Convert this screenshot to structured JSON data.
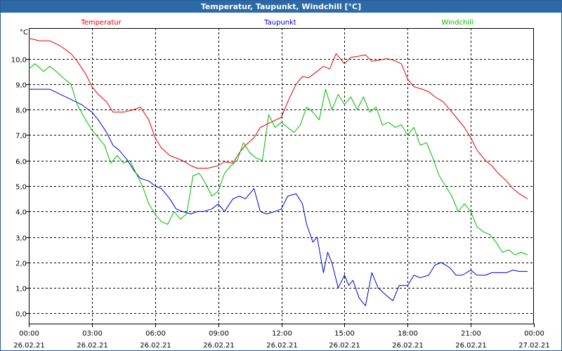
{
  "window": {
    "title": "Temperatur, Taupunkt, Windchill [°C]"
  },
  "chart_data": {
    "type": "line",
    "title": "Temperatur, Taupunkt, Windchill [°C]",
    "ylabel": "°C",
    "ylim": [
      -0.4,
      11.2
    ],
    "y_ticks": [
      0.0,
      1.0,
      2.0,
      3.0,
      4.0,
      5.0,
      6.0,
      7.0,
      8.0,
      9.0,
      10.0
    ],
    "y_tick_labels": [
      "0,0",
      "1,0",
      "2,0",
      "3,0",
      "4,0",
      "5,0",
      "6,0",
      "7,0",
      "8,0",
      "9,0",
      "10,0"
    ],
    "xlim": [
      0,
      24
    ],
    "x_ticks": [
      0,
      3,
      6,
      9,
      12,
      15,
      18,
      21,
      24
    ],
    "x_tick_labels": [
      {
        "time": "00:00",
        "date": "26.02.21"
      },
      {
        "time": "03:00",
        "date": "26.02.21"
      },
      {
        "time": "06:00",
        "date": "26.02.21"
      },
      {
        "time": "09:00",
        "date": "26.02.21"
      },
      {
        "time": "12:00",
        "date": "26.02.21"
      },
      {
        "time": "15:00",
        "date": "26.02.21"
      },
      {
        "time": "18:00",
        "date": "26.02.21"
      },
      {
        "time": "21:00",
        "date": "26.02.21"
      },
      {
        "time": "00:00",
        "date": "27.02.21"
      }
    ],
    "grid": true,
    "series": [
      {
        "name": "Temperatur",
        "color": "#e00000",
        "legend_position": "top-left",
        "x": [
          0,
          0.5,
          1,
          1.5,
          2,
          2.3,
          2.7,
          3,
          3.3,
          3.7,
          4,
          4.5,
          5,
          5.3,
          5.7,
          6,
          6.3,
          6.7,
          7,
          7.3,
          7.7,
          8,
          8.5,
          9,
          9.3,
          9.7,
          10,
          10.3,
          10.7,
          11,
          11.5,
          12,
          12.3,
          12.7,
          13,
          13.3,
          13.7,
          14,
          14.3,
          14.6,
          15,
          15.3,
          15.7,
          16,
          16.3,
          16.7,
          17,
          17.3,
          17.7,
          18,
          18.3,
          18.7,
          19,
          19.3,
          19.7,
          20,
          20.3,
          20.7,
          21,
          21.3,
          21.7,
          22,
          22.3,
          22.7,
          23,
          23.3,
          23.7
        ],
        "values": [
          10.8,
          10.7,
          10.7,
          10.5,
          10.2,
          9.9,
          9.4,
          8.9,
          8.6,
          8.3,
          7.9,
          7.9,
          8.0,
          8.1,
          7.6,
          6.9,
          6.5,
          6.2,
          6.1,
          6.0,
          5.8,
          5.7,
          5.7,
          5.8,
          5.95,
          5.9,
          6.3,
          6.6,
          6.9,
          7.3,
          7.5,
          7.7,
          8.3,
          9.0,
          9.3,
          9.25,
          9.5,
          9.7,
          9.6,
          10.2,
          9.8,
          10.05,
          10.1,
          10.15,
          9.9,
          9.95,
          10.0,
          9.95,
          9.8,
          9.2,
          8.9,
          8.8,
          8.7,
          8.5,
          8.3,
          8.0,
          7.7,
          7.3,
          6.9,
          6.4,
          6.0,
          5.8,
          5.5,
          5.2,
          4.9,
          4.7,
          4.5
        ]
      },
      {
        "name": "Taupunkt",
        "color": "#0000cc",
        "legend_position": "top-center",
        "x": [
          0,
          0.5,
          1,
          1.5,
          2,
          2.5,
          3,
          3.3,
          3.7,
          4,
          4.3,
          4.7,
          5,
          5.3,
          5.7,
          6,
          6.3,
          6.7,
          7,
          7.3,
          7.7,
          8,
          8.3,
          8.7,
          9,
          9.3,
          9.7,
          10,
          10.3,
          10.7,
          11,
          11.3,
          11.7,
          12,
          12.3,
          12.7,
          13,
          13.2,
          13.5,
          13.7,
          14,
          14.2,
          14.4,
          14.7,
          15,
          15.2,
          15.4,
          15.7,
          16,
          16.3,
          16.6,
          17,
          17.3,
          17.6,
          18,
          18.3,
          18.6,
          19,
          19.3,
          19.6,
          20,
          20.3,
          20.6,
          21,
          21.3,
          21.7,
          22,
          22.3,
          22.7,
          23,
          23.3,
          23.7
        ],
        "values": [
          8.8,
          8.8,
          8.8,
          8.6,
          8.4,
          8.2,
          7.9,
          7.6,
          7.1,
          6.6,
          6.4,
          6.0,
          5.6,
          5.3,
          5.2,
          5.0,
          4.9,
          4.5,
          4.1,
          4.0,
          3.9,
          4.0,
          4.0,
          4.1,
          4.3,
          4.0,
          4.5,
          4.6,
          4.5,
          4.9,
          4.0,
          3.9,
          4.0,
          4.1,
          4.6,
          4.7,
          4.3,
          3.5,
          2.8,
          3.0,
          1.6,
          2.4,
          2.0,
          1.0,
          1.5,
          1.1,
          1.3,
          0.6,
          0.3,
          1.6,
          1.0,
          0.7,
          0.5,
          1.1,
          1.1,
          1.5,
          1.4,
          1.5,
          1.9,
          2.0,
          1.8,
          1.5,
          1.5,
          1.7,
          1.5,
          1.5,
          1.6,
          1.6,
          1.6,
          1.7,
          1.65,
          1.65
        ]
      },
      {
        "name": "Windchill",
        "color": "#00bb00",
        "legend_position": "top-right",
        "x": [
          0,
          0.3,
          0.7,
          1,
          1.3,
          1.7,
          2,
          2.3,
          2.7,
          3,
          3.3,
          3.6,
          3.9,
          4.2,
          4.5,
          4.8,
          5.1,
          5.4,
          5.7,
          6,
          6.3,
          6.6,
          6.9,
          7.2,
          7.5,
          7.8,
          8.1,
          8.4,
          8.7,
          9,
          9.3,
          9.6,
          9.9,
          10.2,
          10.5,
          10.8,
          11.1,
          11.4,
          11.7,
          12,
          12.3,
          12.6,
          12.9,
          13.2,
          13.5,
          13.8,
          14.1,
          14.4,
          14.7,
          15,
          15.3,
          15.6,
          15.9,
          16.2,
          16.5,
          16.8,
          17.1,
          17.4,
          17.7,
          18,
          18.3,
          18.6,
          18.9,
          19.2,
          19.5,
          19.8,
          20.1,
          20.4,
          20.7,
          21,
          21.3,
          21.6,
          21.9,
          22.2,
          22.5,
          22.8,
          23.1,
          23.4,
          23.7
        ],
        "values": [
          9.6,
          9.8,
          9.5,
          9.7,
          9.5,
          9.2,
          9.0,
          8.2,
          7.6,
          7.2,
          6.9,
          6.6,
          5.9,
          6.2,
          5.9,
          6.0,
          5.5,
          5.0,
          4.3,
          3.9,
          3.6,
          3.5,
          4.0,
          3.7,
          3.9,
          5.4,
          5.5,
          5.1,
          4.6,
          4.8,
          5.5,
          5.8,
          6.0,
          6.7,
          6.3,
          6.1,
          6.0,
          7.8,
          7.3,
          7.5,
          7.3,
          7.1,
          7.4,
          8.1,
          7.9,
          7.6,
          8.8,
          8.0,
          8.6,
          8.2,
          8.5,
          8.0,
          8.5,
          7.9,
          8.1,
          7.4,
          7.5,
          7.3,
          7.4,
          7.0,
          7.3,
          6.6,
          6.7,
          6.1,
          5.4,
          5.0,
          4.6,
          4.0,
          4.3,
          4.0,
          3.4,
          3.2,
          3.1,
          2.8,
          2.4,
          2.5,
          2.3,
          2.4,
          2.3
        ]
      }
    ]
  }
}
